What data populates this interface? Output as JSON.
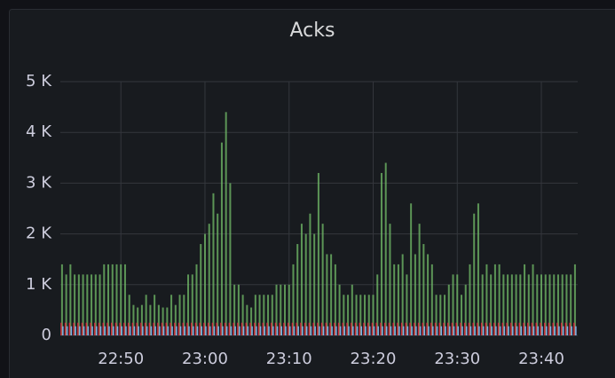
{
  "chart_data": {
    "type": "bar",
    "title": "Acks",
    "x": [
      1363,
      1363.5,
      1364,
      1364.5,
      1365,
      1365.5,
      1366,
      1366.5,
      1367,
      1367.5,
      1368,
      1368.5,
      1369,
      1369.5,
      1370,
      1370.5,
      1371,
      1371.5,
      1372,
      1372.5,
      1373,
      1373.5,
      1374,
      1374.5,
      1375,
      1375.5,
      1376,
      1376.5,
      1377,
      1377.5,
      1378,
      1378.5,
      1379,
      1379.5,
      1380,
      1380.5,
      1381,
      1381.5,
      1382,
      1382.5,
      1383,
      1383.5,
      1384,
      1384.5,
      1385,
      1385.5,
      1386,
      1386.5,
      1387,
      1387.5,
      1388,
      1388.5,
      1389,
      1389.5,
      1390,
      1390.5,
      1391,
      1391.5,
      1392,
      1392.5,
      1393,
      1393.5,
      1394,
      1394.5,
      1395,
      1395.5,
      1396,
      1396.5,
      1397,
      1397.5,
      1398,
      1398.5,
      1399,
      1399.5,
      1400,
      1400.5,
      1401,
      1401.5,
      1402,
      1402.5,
      1403,
      1403.5,
      1404,
      1404.5,
      1405,
      1405.5,
      1406,
      1406.5,
      1407,
      1407.5,
      1408,
      1408.5,
      1409,
      1409.5,
      1410,
      1410.5,
      1411,
      1411.5,
      1412,
      1412.5,
      1413,
      1413.5,
      1414,
      1414.5,
      1415,
      1415.5,
      1416,
      1416.5,
      1417,
      1417.5,
      1418,
      1418.5,
      1419,
      1419.5,
      1420,
      1420.5,
      1421,
      1421.5,
      1422,
      1422.5,
      1423,
      1423.5,
      1424
    ],
    "series": [
      {
        "color": "#73bf69",
        "values": [
          1400,
          1200,
          1400,
          1200,
          1200,
          1200,
          1200,
          1200,
          1200,
          1200,
          1400,
          1400,
          1400,
          1400,
          1400,
          1400,
          800,
          600,
          550,
          600,
          800,
          600,
          800,
          600,
          550,
          550,
          800,
          600,
          800,
          800,
          1200,
          1200,
          1400,
          1800,
          2000,
          2200,
          2800,
          2400,
          3800,
          4400,
          3000,
          1000,
          1000,
          800,
          600,
          550,
          800,
          800,
          800,
          800,
          800,
          1000,
          1000,
          1000,
          1000,
          1400,
          1800,
          2200,
          2000,
          2400,
          2000,
          3200,
          2200,
          1600,
          1600,
          1400,
          1000,
          800,
          800,
          1000,
          800,
          800,
          800,
          800,
          800,
          1200,
          3200,
          3400,
          2200,
          1400,
          1400,
          1600,
          1200,
          2600,
          1600,
          2200,
          1800,
          1600,
          1400,
          800,
          800,
          800,
          1000,
          1200,
          1200,
          800,
          1000,
          1400,
          2400,
          2600,
          1200,
          1400,
          1200,
          1400,
          1400,
          1200,
          1200,
          1200,
          1200,
          1200,
          1400,
          1200,
          1400,
          1200,
          1200,
          1200,
          1200,
          1200,
          1200,
          1200,
          1200,
          1200,
          1400
        ]
      },
      {
        "color": "#e02f44",
        "values": [
          250,
          250,
          250,
          250,
          250,
          250,
          250,
          250,
          250,
          250,
          250,
          250,
          250,
          250,
          250,
          250,
          250,
          250,
          250,
          250,
          250,
          250,
          250,
          250,
          250,
          250,
          250,
          250,
          250,
          250,
          250,
          250,
          250,
          250,
          250,
          250,
          250,
          250,
          250,
          250,
          250,
          250,
          250,
          250,
          250,
          250,
          250,
          250,
          250,
          250,
          250,
          250,
          250,
          250,
          250,
          250,
          250,
          250,
          250,
          250,
          250,
          250,
          250,
          250,
          250,
          250,
          250,
          250,
          250,
          250,
          250,
          250,
          250,
          250,
          250,
          250,
          250,
          250,
          250,
          250,
          250,
          250,
          250,
          250,
          250,
          250,
          250,
          250,
          250,
          250,
          250,
          250,
          250,
          250,
          250,
          250,
          250,
          250,
          250,
          250,
          250,
          250,
          250,
          250,
          250,
          250,
          250,
          250,
          250,
          250,
          250,
          250,
          250,
          250,
          250,
          250,
          250,
          250,
          250,
          250,
          250,
          250,
          250
        ]
      },
      {
        "color": "#8ab8ff",
        "values": [
          180,
          180,
          180,
          180,
          180,
          180,
          180,
          180,
          180,
          180,
          180,
          180,
          180,
          180,
          180,
          180,
          180,
          180,
          180,
          180,
          180,
          180,
          180,
          180,
          180,
          180,
          180,
          180,
          180,
          180,
          180,
          180,
          180,
          180,
          180,
          180,
          180,
          180,
          180,
          180,
          180,
          180,
          180,
          180,
          180,
          180,
          180,
          180,
          180,
          180,
          180,
          180,
          180,
          180,
          180,
          180,
          180,
          180,
          180,
          180,
          180,
          180,
          180,
          180,
          180,
          180,
          180,
          180,
          180,
          180,
          180,
          180,
          180,
          180,
          180,
          180,
          180,
          180,
          180,
          180,
          180,
          180,
          180,
          180,
          180,
          180,
          180,
          180,
          180,
          180,
          180,
          180,
          180,
          180,
          180,
          180,
          180,
          180,
          180,
          180,
          180,
          180,
          180,
          180,
          180,
          180,
          180,
          180,
          180,
          180,
          180,
          180,
          180,
          180,
          180,
          180,
          180,
          180,
          180,
          180,
          180,
          180,
          180
        ]
      }
    ],
    "xlim": [
      1362.8,
      1424.6
    ],
    "xticks": [
      {
        "value": 1370,
        "label": "22:50"
      },
      {
        "value": 1380,
        "label": "23:00"
      },
      {
        "value": 1390,
        "label": "23:10"
      },
      {
        "value": 1400,
        "label": "23:20"
      },
      {
        "value": 1410,
        "label": "23:30"
      },
      {
        "value": 1420,
        "label": "23:40"
      }
    ],
    "ylim": [
      0,
      5000
    ],
    "yticks": [
      0,
      {
        "value": 1000,
        "label": "1 K"
      },
      {
        "value": 2000,
        "label": "2 K"
      },
      {
        "value": 3000,
        "label": "3 K"
      },
      {
        "value": 4000,
        "label": "4 K"
      },
      {
        "value": 5000,
        "label": "5 K"
      }
    ],
    "grid": true
  }
}
